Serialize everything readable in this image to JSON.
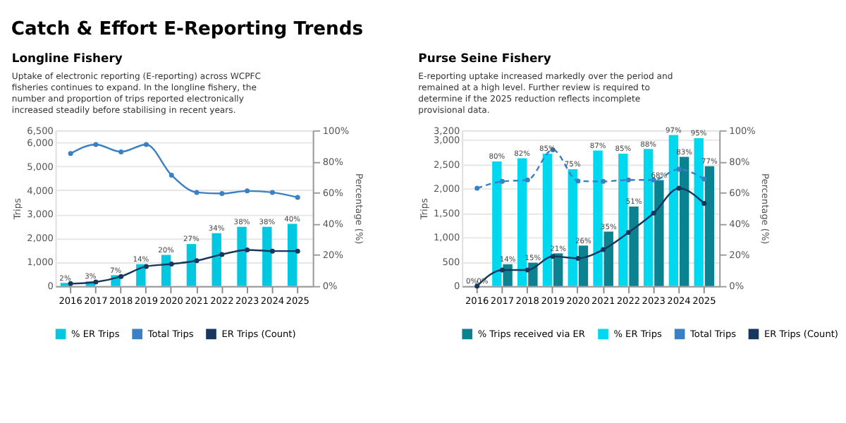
{
  "chart_data": [
    {
      "type": "bar",
      "title": "Longline Fishery",
      "subtitle": "Uptake of electronic reporting (E-reporting) across WCPFC fisheries continues to expand. In the longline fishery, the number and proportion of trips reported electronically increased steadily before stabilising in recent years.",
      "annotations": [
        "Catch & Effort E-Reporting Trends"
      ],
      "categories": [
        "2016",
        "2017",
        "2018",
        "2019",
        "2020",
        "2021",
        "2022",
        "2023",
        "2024",
        "2025"
      ],
      "series": [
        {
          "name": "% ER Trips",
          "axis": "y2",
          "color": "#00c8e0",
          "values": [
            2,
            3,
            7,
            14,
            20,
            27,
            34,
            38,
            38,
            40
          ],
          "value_labels": [
            "2%",
            "3%",
            "7%",
            "14%",
            "20%",
            "27%",
            "34%",
            "38%",
            "38%",
            "40%"
          ]
        },
        {
          "name": "Total Trips",
          "type": "line",
          "color": "#3a80c4",
          "marker": "circle",
          "line_style": "solid",
          "values": [
            5530,
            5910,
            5600,
            5910,
            4630,
            3910,
            3860,
            3970,
            3910,
            3700
          ]
        },
        {
          "name": "ER Trips (Count)",
          "type": "line",
          "color": "#17375e",
          "marker": "circle",
          "line_style": "solid",
          "values": [
            100,
            170,
            400,
            820,
            920,
            1060,
            1320,
            1510,
            1460,
            1460
          ]
        }
      ],
      "ylabel": "Trips",
      "y2label": "Percentage (%)",
      "ylim": [
        0,
        6500
      ],
      "yticks": [
        {
          "value": 0,
          "label": "0"
        },
        {
          "value": 1000,
          "label": "1,000"
        },
        {
          "value": 2000,
          "label": "2,000"
        },
        {
          "value": 3000,
          "label": "3,000"
        },
        {
          "value": 4000,
          "label": "4,000"
        },
        {
          "value": 5000,
          "label": "5,000"
        },
        {
          "value": 6000,
          "label": "6,000"
        },
        {
          "value": 6500,
          "label": "6,500"
        }
      ],
      "y2lim": [
        0,
        100
      ],
      "y2ticks": [
        {
          "value": 0,
          "label": "0%"
        },
        {
          "value": 20,
          "label": "20%"
        },
        {
          "value": 40,
          "label": "40%"
        },
        {
          "value": 60,
          "label": "60%"
        },
        {
          "value": 80,
          "label": "80%"
        },
        {
          "value": 100,
          "label": "100%"
        }
      ],
      "grid": "y",
      "legend": "bottom"
    },
    {
      "type": "bar",
      "title": "Purse Seine Fishery",
      "subtitle": "E-reporting uptake increased markedly over the period and remained at a high level. Further review is required to determine if the 2025 reduction reflects incomplete provisional data.",
      "categories": [
        "2016",
        "2017",
        "2018",
        "2019",
        "2020",
        "2021",
        "2022",
        "2023",
        "2024",
        "2025"
      ],
      "series": [
        {
          "name": "% Trips received via ER",
          "axis": "y2",
          "color": "#0b8290",
          "values": [
            0,
            14,
            15,
            21,
            26,
            35,
            51,
            68,
            83,
            77
          ],
          "value_labels": [
            "0%",
            "14%",
            "15%",
            "21%",
            "26%",
            "35%",
            "51%",
            "68%",
            "83%",
            "77%"
          ]
        },
        {
          "name": "% ER Trips",
          "axis": "y2",
          "color": "#00d8f0",
          "values": [
            0,
            80,
            82,
            85,
            75,
            87,
            85,
            88,
            97,
            95
          ],
          "value_labels": [
            "0%",
            "80%",
            "82%",
            "85%",
            "75%",
            "87%",
            "85%",
            "88%",
            "97%",
            "95%"
          ]
        },
        {
          "name": "Total Trips",
          "type": "line",
          "color": "#3a80c4",
          "marker": "circle",
          "line_style": "dashed",
          "values": [
            2010,
            2150,
            2180,
            2800,
            2160,
            2150,
            2180,
            2180,
            2400,
            2200
          ]
        },
        {
          "name": "ER Trips (Count)",
          "type": "line",
          "color": "#17375e",
          "marker": "circle",
          "line_style": "solid",
          "values": [
            0,
            330,
            330,
            610,
            570,
            750,
            1100,
            1500,
            2010,
            1700
          ]
        }
      ],
      "ylabel": "Trips",
      "y2label": "Percentage (%)",
      "ylim": [
        0,
        3200
      ],
      "yticks": [
        {
          "value": 0,
          "label": "0"
        },
        {
          "value": 500,
          "label": "500"
        },
        {
          "value": 1000,
          "label": "1,000"
        },
        {
          "value": 1500,
          "label": "1,500"
        },
        {
          "value": 2000,
          "label": "2,000"
        },
        {
          "value": 2500,
          "label": "2,500"
        },
        {
          "value": 3000,
          "label": "3,000"
        },
        {
          "value": 3200,
          "label": "3,200"
        }
      ],
      "y2lim": [
        0,
        100
      ],
      "y2ticks": [
        {
          "value": 0,
          "label": "0%"
        },
        {
          "value": 20,
          "label": "20%"
        },
        {
          "value": 40,
          "label": "40%"
        },
        {
          "value": 60,
          "label": "60%"
        },
        {
          "value": 80,
          "label": "80%"
        },
        {
          "value": 100,
          "label": "100%"
        }
      ],
      "grid": "y",
      "legend": "bottom"
    }
  ]
}
